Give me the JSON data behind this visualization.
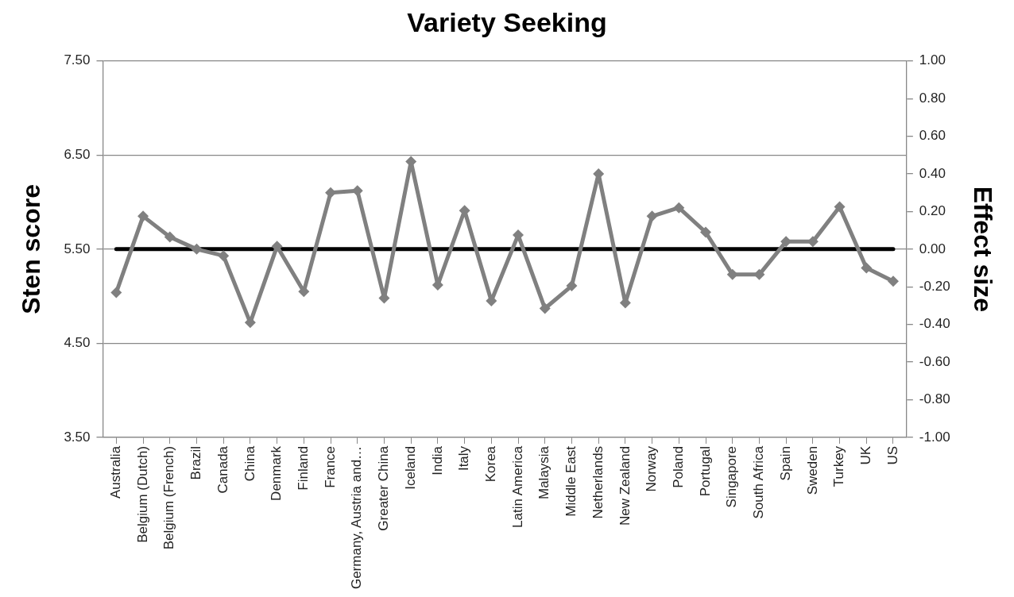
{
  "chart_data": {
    "type": "line",
    "title": "Variety Seeking",
    "ylabel": "Sten score",
    "y2label": "Effect size",
    "categories": [
      "Australia",
      "Belgium (Dutch)",
      "Belgium (French)",
      "Brazil",
      "Canada",
      "China",
      "Denmark",
      "Finland",
      "France",
      "Germany, Austria and…",
      "Greater China",
      "Iceland",
      "India",
      "Italy",
      "Korea",
      "Latin America",
      "Malaysia",
      "Middle East",
      "Netherlands",
      "New Zealand",
      "Norway",
      "Poland",
      "Portugal",
      "Singapore",
      "South Africa",
      "Spain",
      "Sweden",
      "Turkey",
      "UK",
      "US"
    ],
    "series": [
      {
        "color": "#808080",
        "values": [
          5.04,
          5.85,
          5.63,
          5.5,
          5.43,
          4.72,
          5.53,
          5.05,
          6.1,
          6.12,
          4.98,
          6.43,
          5.12,
          5.91,
          4.95,
          5.65,
          4.87,
          5.11,
          6.3,
          4.93,
          5.85,
          5.94,
          5.68,
          5.23,
          5.23,
          5.58,
          5.58,
          5.95,
          5.3,
          5.16
        ]
      }
    ],
    "ylim": [
      3.5,
      7.5
    ],
    "yticks": [
      {
        "value": 3.5,
        "label": "3.50"
      },
      {
        "value": 4.5,
        "label": "4.50"
      },
      {
        "value": 5.5,
        "label": "5.50"
      },
      {
        "value": 6.5,
        "label": "6.50"
      },
      {
        "value": 7.5,
        "label": "7.50"
      }
    ],
    "y2lim": [
      -1,
      1
    ],
    "y2ticks": [
      {
        "value": -1,
        "label": "-1.00"
      },
      {
        "value": -0.8,
        "label": "-0.80"
      },
      {
        "value": -0.6,
        "label": "-0.60"
      },
      {
        "value": -0.4,
        "label": "-0.40"
      },
      {
        "value": -0.2,
        "label": "-0.20"
      },
      {
        "value": 0,
        "label": "0.00"
      },
      {
        "value": 0.2,
        "label": "0.20"
      },
      {
        "value": 0.4,
        "label": "0.40"
      },
      {
        "value": 0.6,
        "label": "0.60"
      },
      {
        "value": 0.8,
        "label": "0.80"
      },
      {
        "value": 1,
        "label": "1.00"
      }
    ],
    "ref_lines": [
      {
        "axis": "y",
        "value": 5.5,
        "color": "#000000",
        "line_style": "solid"
      }
    ],
    "grid": "y",
    "legend": false,
    "marker": "diamond",
    "line_style": "solid"
  }
}
